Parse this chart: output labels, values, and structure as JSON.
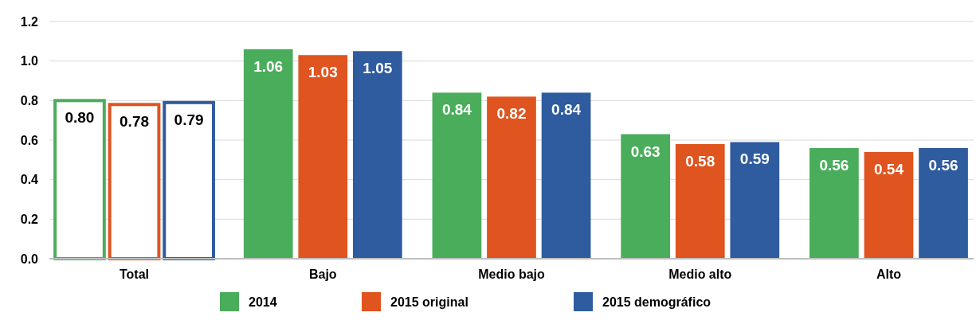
{
  "chart_data": {
    "type": "bar",
    "categories": [
      "Total",
      "Bajo",
      "Medio bajo",
      "Medio alto",
      "Alto"
    ],
    "series": [
      {
        "name": "2014",
        "color": "#4aad5b",
        "colors": [
          "#ffffff",
          "#4aad5b",
          "#4aad5b",
          "#4aad5b",
          "#4aad5b"
        ],
        "values": [
          0.8,
          1.06,
          0.84,
          0.63,
          0.56
        ],
        "value_labels": [
          "0.80",
          "1.06",
          "0.84",
          "0.63",
          "0.56"
        ]
      },
      {
        "name": "2015 original",
        "color": "#df541f",
        "colors": [
          "#ffffff",
          "#df541f",
          "#df541f",
          "#df541f",
          "#df541f"
        ],
        "values": [
          0.78,
          1.03,
          0.82,
          0.58,
          0.54
        ],
        "value_labels": [
          "0.78",
          "1.03",
          "0.82",
          "0.58",
          "0.54"
        ]
      },
      {
        "name": "2015 demográfico",
        "color": "#2f5b9f",
        "colors": [
          "#ffffff",
          "#2f5b9f",
          "#2f5b9f",
          "#2f5b9f",
          "#2f5b9f"
        ],
        "values": [
          0.79,
          1.05,
          0.84,
          0.59,
          0.56
        ],
        "value_labels": [
          "0.79",
          "1.05",
          "0.84",
          "0.59",
          "0.56"
        ]
      }
    ],
    "ylim": [
      0,
      1.2
    ],
    "yticks": [
      {
        "value": 0,
        "label": "0.0"
      },
      0.2,
      0.4,
      0.6,
      0.8,
      {
        "value": 1,
        "label": "1.0"
      },
      1.2
    ],
    "grid": "y",
    "legend": "bottom"
  }
}
